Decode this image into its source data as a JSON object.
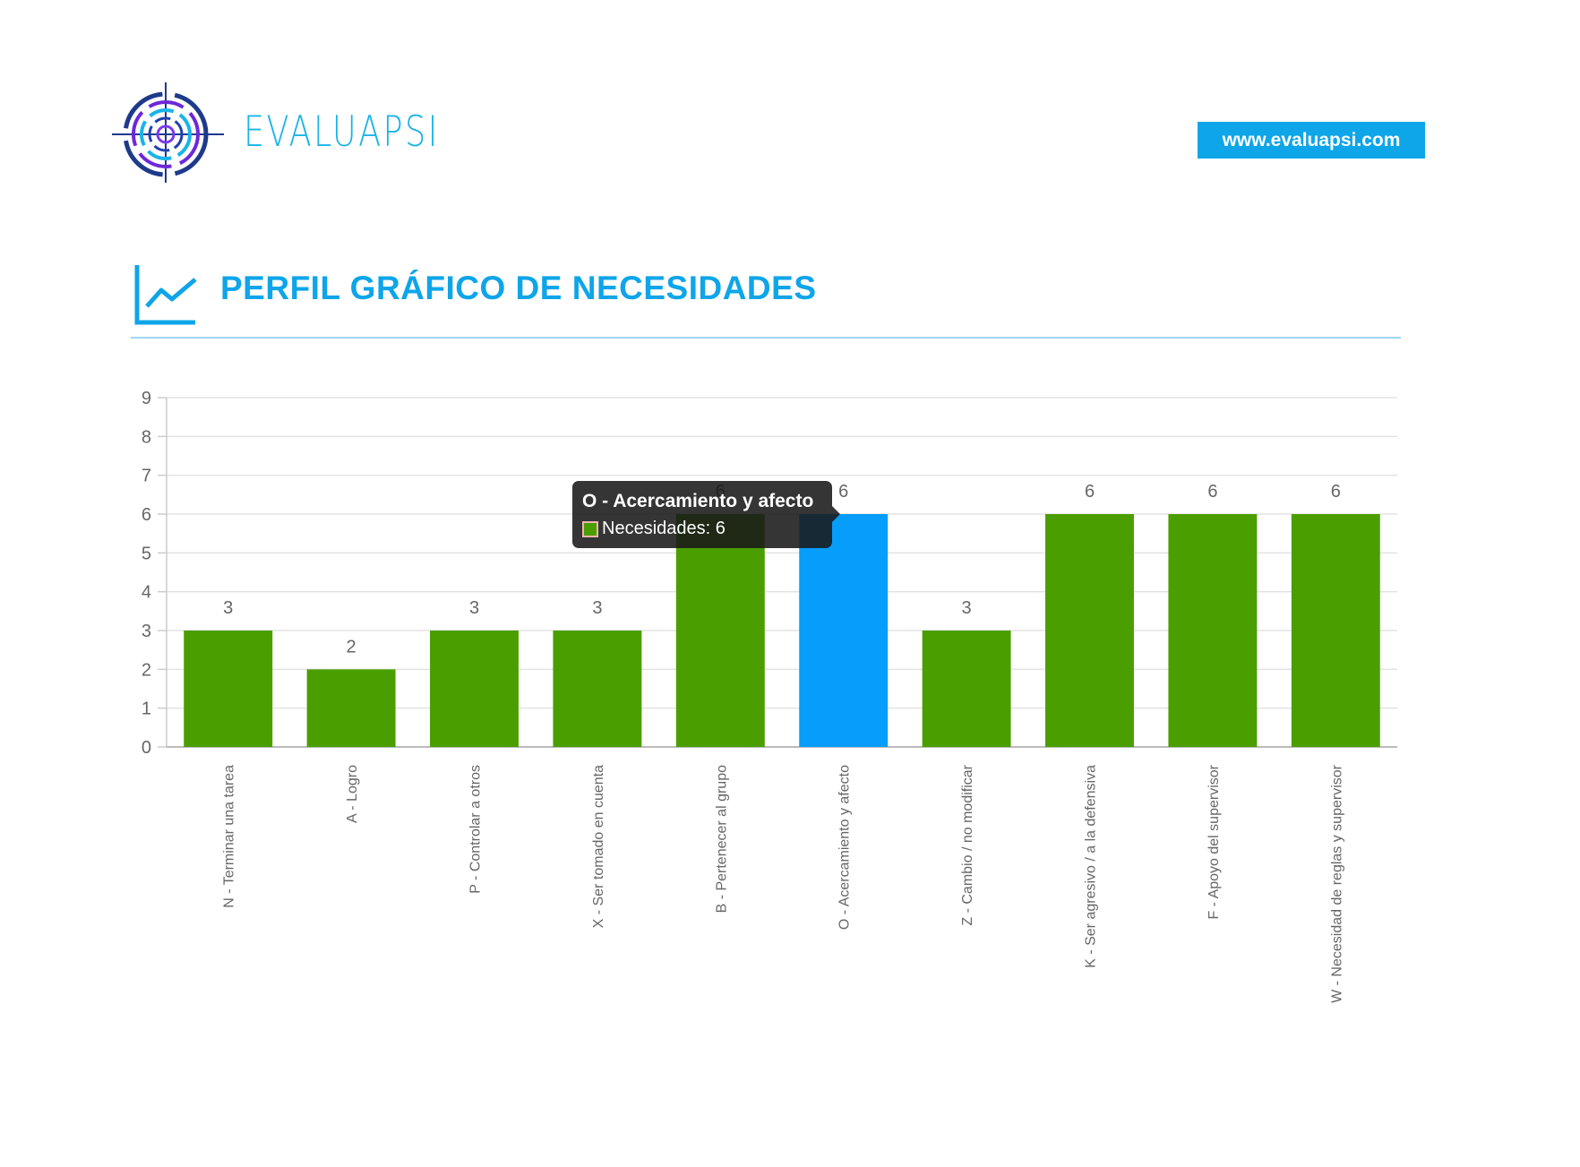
{
  "header": {
    "brand": "EVALUAPSI",
    "url": "www.evaluapsi.com"
  },
  "section": {
    "title": "PERFIL GRÁFICO DE NECESIDADES",
    "icon": "line-chart-icon"
  },
  "colors": {
    "accent": "#0ea5e9",
    "bar": "#4b9e00",
    "bar_highlight": "#069dfb"
  },
  "chart_data": {
    "type": "bar",
    "categories": [
      "N - Terminar una tarea",
      "A - Logro",
      "P - Controlar a otros",
      "X - Ser tomado en cuenta",
      "B - Pertenecer al grupo",
      "O - Acercamiento y afecto",
      "Z - Cambio / no modificar",
      "K - Ser agresivo / a la defensiva",
      "F - Apoyo del supervisor",
      "W - Necesidad de reglas y supervisor"
    ],
    "series": [
      {
        "name": "Necesidades",
        "values": [
          3,
          2,
          3,
          3,
          6,
          6,
          3,
          6,
          6,
          6
        ]
      }
    ],
    "ylim": [
      0,
      9
    ],
    "yticks": [
      "0",
      "1",
      "2",
      "3",
      "4",
      "5",
      "6",
      "7",
      "8",
      "9"
    ],
    "grid": true,
    "highlighted_index": 5,
    "data_labels": true
  },
  "tooltip": {
    "title": "O - Acercamiento y afecto",
    "label": "Necesidades: 6"
  }
}
